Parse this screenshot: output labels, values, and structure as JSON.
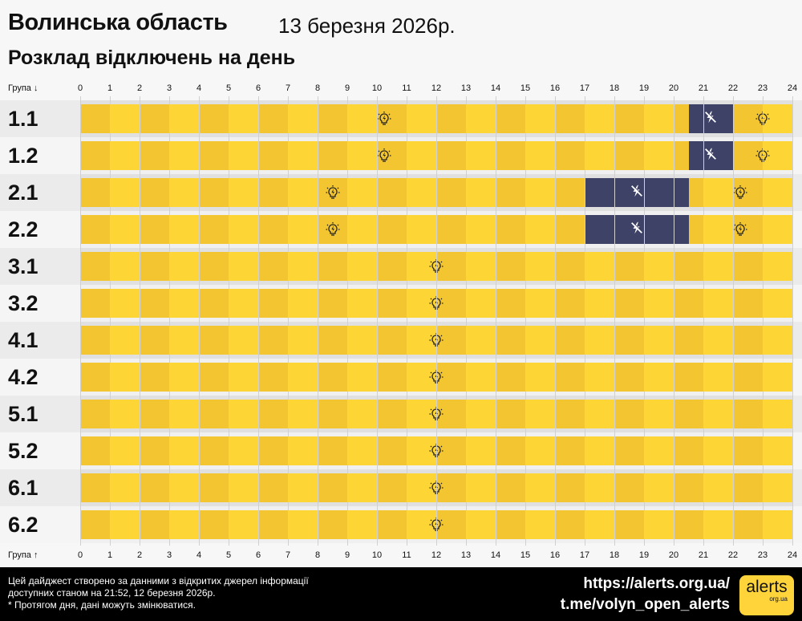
{
  "header": {
    "region": "Волинська область",
    "date": "13 березня 2026р.",
    "subtitle": "Розклад відключень на день"
  },
  "axis": {
    "top_label": "Група ↓",
    "bottom_label": "Група ↑",
    "ticks": [
      "0",
      "1",
      "2",
      "3",
      "4",
      "5",
      "6",
      "7",
      "8",
      "9",
      "10",
      "11",
      "12",
      "13",
      "14",
      "15",
      "16",
      "17",
      "18",
      "19",
      "20",
      "21",
      "22",
      "23",
      "24"
    ]
  },
  "colors": {
    "power_on": "#fdd535",
    "power_on_alt": "#f2c531",
    "power_off": "#3d4266"
  },
  "groups": [
    {
      "name": "1.1",
      "outages": [
        [
          20.5,
          22
        ]
      ]
    },
    {
      "name": "1.2",
      "outages": [
        [
          20.5,
          22
        ]
      ]
    },
    {
      "name": "2.1",
      "outages": [
        [
          17,
          20.5
        ]
      ]
    },
    {
      "name": "2.2",
      "outages": [
        [
          17,
          20.5
        ]
      ]
    },
    {
      "name": "3.1",
      "outages": []
    },
    {
      "name": "3.2",
      "outages": []
    },
    {
      "name": "4.1",
      "outages": []
    },
    {
      "name": "4.2",
      "outages": []
    },
    {
      "name": "5.1",
      "outages": []
    },
    {
      "name": "5.2",
      "outages": []
    },
    {
      "name": "6.1",
      "outages": []
    },
    {
      "name": "6.2",
      "outages": []
    }
  ],
  "footer": {
    "line1": "Цей дайджест створено за данними з відкритих джерел інформації",
    "line2": "доступних станом на 21:52, 12 березня 2026р.",
    "line3": "* Протягом дня, дані можуть змінюватися.",
    "site": "https://alerts.org.ua/",
    "telegram": "t.me/volyn_open_alerts",
    "logo": "alerts",
    "logo_sub": "org.ua"
  }
}
